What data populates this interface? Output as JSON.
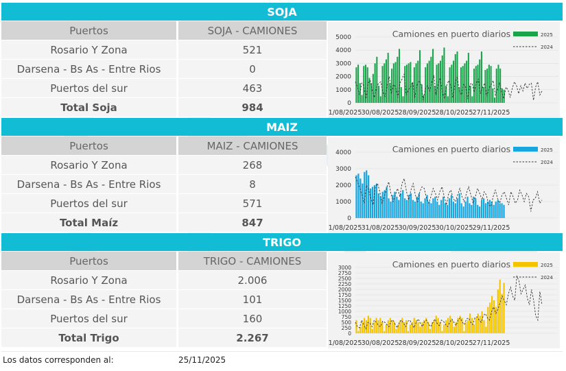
{
  "colors": {
    "band": "#12bcd4",
    "soja": "#1aa34a",
    "maiz": "#17a6e0",
    "trigo": "#f5c400",
    "prev": "#333333"
  },
  "sections": [
    {
      "key": "soja",
      "title": "SOJA",
      "header": [
        "Puertos",
        "SOJA - CAMIONES"
      ],
      "rows": [
        [
          "Rosario Y Zona",
          "521"
        ],
        [
          "Darsena - Bs As - Entre Rios",
          "0"
        ],
        [
          "Puertos del sur",
          "463"
        ]
      ],
      "total": [
        "Total Soja",
        "984"
      ]
    },
    {
      "key": "maiz",
      "title": "MAIZ",
      "header": [
        "Puertos",
        "MAIZ - CAMIONES"
      ],
      "rows": [
        [
          "Rosario Y Zona",
          "268"
        ],
        [
          "Darsena - Bs As - Entre Rios",
          "8"
        ],
        [
          "Puertos del sur",
          "571"
        ]
      ],
      "total": [
        "Total Maíz",
        "847"
      ]
    },
    {
      "key": "trigo",
      "title": "TRIGO",
      "header": [
        "Puertos",
        "TRIGO - CAMIONES"
      ],
      "rows": [
        [
          "Rosario Y Zona",
          "2.006"
        ],
        [
          "Darsena - Bs As - Entre Rios",
          "101"
        ],
        [
          "Puertos del sur",
          "160"
        ]
      ],
      "total": [
        "Total Trigo",
        "2.267"
      ]
    }
  ],
  "footer": {
    "label": "Los datos corresponden al:",
    "date": "25/11/2025"
  },
  "chart_data": [
    {
      "type": "bar",
      "title": "Camiones en puerto diarios",
      "legend": [
        "2025",
        "2024"
      ],
      "legend_position": "top-right",
      "ylim": [
        0,
        5000
      ],
      "yticks": [
        "0",
        "1000",
        "2000",
        "3000",
        "4000",
        "5000"
      ],
      "xticks": [
        "01/08/2025",
        "30/08/2025",
        "28/09/2025",
        "28/10/2025",
        "27/11/2025"
      ],
      "series": [
        {
          "name": "2025",
          "kind": "bar",
          "values": [
            2700,
            2900,
            1500,
            600,
            2800,
            2900,
            2700,
            1900,
            1500,
            2200,
            3000,
            3500,
            1300,
            500,
            2800,
            3000,
            3300,
            3800,
            1500,
            2600,
            3000,
            3100,
            3500,
            4100,
            1200,
            500,
            2800,
            2900,
            3000,
            3100,
            1500,
            2700,
            3000,
            3200,
            4000,
            1400,
            600,
            2700,
            3000,
            3200,
            3500,
            4100,
            1300,
            2900,
            3000,
            3200,
            3600,
            4200,
            1300,
            500,
            2700,
            2900,
            3200,
            3700,
            3900,
            1200,
            2700,
            2800,
            3000,
            3200,
            3800,
            1300,
            500,
            2600,
            2800,
            2900,
            3300,
            3900,
            1200,
            2500,
            2600,
            2900,
            2800,
            1100,
            400,
            2600,
            2900,
            2600,
            1100,
            1000
          ]
        },
        {
          "name": "2024",
          "kind": "line",
          "values": [
            1600,
            1200,
            600,
            1500,
            1300,
            300,
            1500,
            1700,
            900,
            400,
            1200,
            1500,
            1600,
            800,
            500,
            1300,
            2000,
            700,
            1400,
            1200,
            400,
            1500,
            1800,
            2200,
            600,
            1000,
            1200,
            1600,
            400,
            1300,
            1700,
            1400,
            200,
            1100,
            1300,
            900,
            1500,
            2100,
            600,
            1400,
            1900,
            800,
            300,
            1300,
            1700,
            1300,
            400,
            1500,
            2000,
            900,
            600,
            1400,
            1200,
            300,
            1400,
            1500,
            800,
            1500,
            1800,
            700,
            1200,
            1500,
            500,
            1100,
            1400,
            1700,
            600,
            1000,
            1500,
            800,
            300,
            1200,
            1000,
            400,
            1100,
            1600,
            1300,
            700,
            1300,
            900,
            1500,
            1100,
            1400,
            1500,
            200,
            1200,
            1600,
            600,
            900
          ]
        }
      ]
    },
    {
      "type": "bar",
      "title": "Camiones en puerto diarios",
      "legend": [
        "2025",
        "2024"
      ],
      "legend_position": "top-right",
      "ylim": [
        0,
        4000
      ],
      "yticks": [
        "0",
        "1000",
        "2000",
        "3000",
        "4000"
      ],
      "xticks": [
        "01/08/2025",
        "31/08/2025",
        "30/09/2025",
        "30/10/2025",
        "29/11/2025"
      ],
      "series": [
        {
          "name": "2025",
          "kind": "bar",
          "values": [
            2600,
            2700,
            2400,
            2100,
            2800,
            2900,
            2600,
            1800,
            1900,
            2000,
            2100,
            1500,
            1300,
            1600,
            1700,
            1900,
            1200,
            1000,
            1400,
            1600,
            1300,
            1100,
            1500,
            1700,
            1200,
            1100,
            1400,
            1500,
            1100,
            1000,
            1300,
            1500,
            1000,
            900,
            1200,
            1400,
            1000,
            900,
            1200,
            1300,
            1000,
            800,
            1100,
            1300,
            900,
            800,
            1200,
            1400,
            1000,
            900,
            1200,
            1500,
            900,
            700,
            1000,
            1300,
            900,
            800,
            1300,
            1200,
            800,
            700,
            1100,
            1200,
            900,
            1000,
            1100,
            1000,
            800,
            1000,
            1100,
            900,
            900,
            800
          ]
        },
        {
          "name": "2024",
          "kind": "line",
          "values": [
            2500,
            2200,
            1800,
            1400,
            900,
            2000,
            1700,
            1200,
            800,
            1900,
            2100,
            1600,
            900,
            1300,
            1800,
            2200,
            1500,
            1000,
            1400,
            1800,
            1300,
            2100,
            2400,
            1600,
            1100,
            1700,
            2100,
            1400,
            1000,
            1600,
            1900,
            1800,
            1200,
            900,
            1300,
            1800,
            1500,
            1100,
            1600,
            1900,
            1300,
            800,
            1500,
            1700,
            1200,
            1000,
            1400,
            1800,
            1300,
            1000,
            1500,
            1900,
            1400,
            900,
            1300,
            1800,
            1500,
            1100,
            1600,
            1400,
            800,
            700,
            1300,
            1700,
            1200,
            900,
            1400,
            1600,
            1200,
            800,
            1600,
            1300,
            900,
            1100,
            1700,
            1400,
            1000,
            1500,
            1300,
            400,
            1100,
            1200,
            1600,
            900,
            1100
          ]
        }
      ]
    },
    {
      "type": "bar",
      "title": "Camiones en puerto diarios",
      "legend": [
        "2025",
        "2024"
      ],
      "legend_position": "top-right",
      "ylim": [
        0,
        3000
      ],
      "yticks": [
        "0",
        "250",
        "500",
        "750",
        "1000",
        "1250",
        "1500",
        "1750",
        "2000",
        "2250",
        "2500",
        "2750",
        "3000"
      ],
      "xticks": [
        "01/08/2025",
        "30/08/2025",
        "28/09/2025",
        "28/10/2025",
        "27/11/2025"
      ],
      "series": [
        {
          "name": "2025",
          "kind": "bar",
          "values": [
            600,
            100,
            300,
            500,
            700,
            600,
            800,
            700,
            200,
            500,
            700,
            600,
            700,
            500,
            100,
            400,
            600,
            700,
            600,
            500,
            200,
            400,
            600,
            700,
            500,
            600,
            100,
            400,
            500,
            700,
            600,
            500,
            300,
            500,
            600,
            700,
            500,
            200,
            500,
            600,
            800,
            700,
            500,
            100,
            400,
            600,
            700,
            800,
            600,
            300,
            500,
            700,
            800,
            700,
            100,
            500,
            600,
            900,
            700,
            400,
            700,
            900,
            800,
            1000,
            600,
            300,
            1200,
            1400,
            1700,
            1500,
            1200,
            2000,
            2450,
            1800,
            2300
          ]
        },
        {
          "name": "2024",
          "kind": "line",
          "values": [
            500,
            300,
            250,
            600,
            400,
            200,
            500,
            450,
            300,
            600,
            500,
            350,
            300,
            550,
            500,
            400,
            300,
            550,
            600,
            400,
            250,
            500,
            600,
            450,
            300,
            550,
            600,
            400,
            250,
            500,
            650,
            450,
            300,
            550,
            600,
            400,
            300,
            500,
            650,
            450,
            350,
            600,
            550,
            400,
            300,
            500,
            650,
            500,
            350,
            600,
            700,
            500,
            400,
            650,
            700,
            500,
            400,
            700,
            750,
            600,
            500,
            800,
            900,
            700,
            600,
            1000,
            1200,
            900,
            1100,
            1400,
            1700,
            1500,
            1300,
            1800,
            2100,
            1700,
            1500,
            2600,
            2400,
            1800,
            2000,
            2200,
            1600,
            1300,
            2000,
            1500,
            800,
            600,
            1900,
            1300
          ]
        }
      ]
    }
  ]
}
